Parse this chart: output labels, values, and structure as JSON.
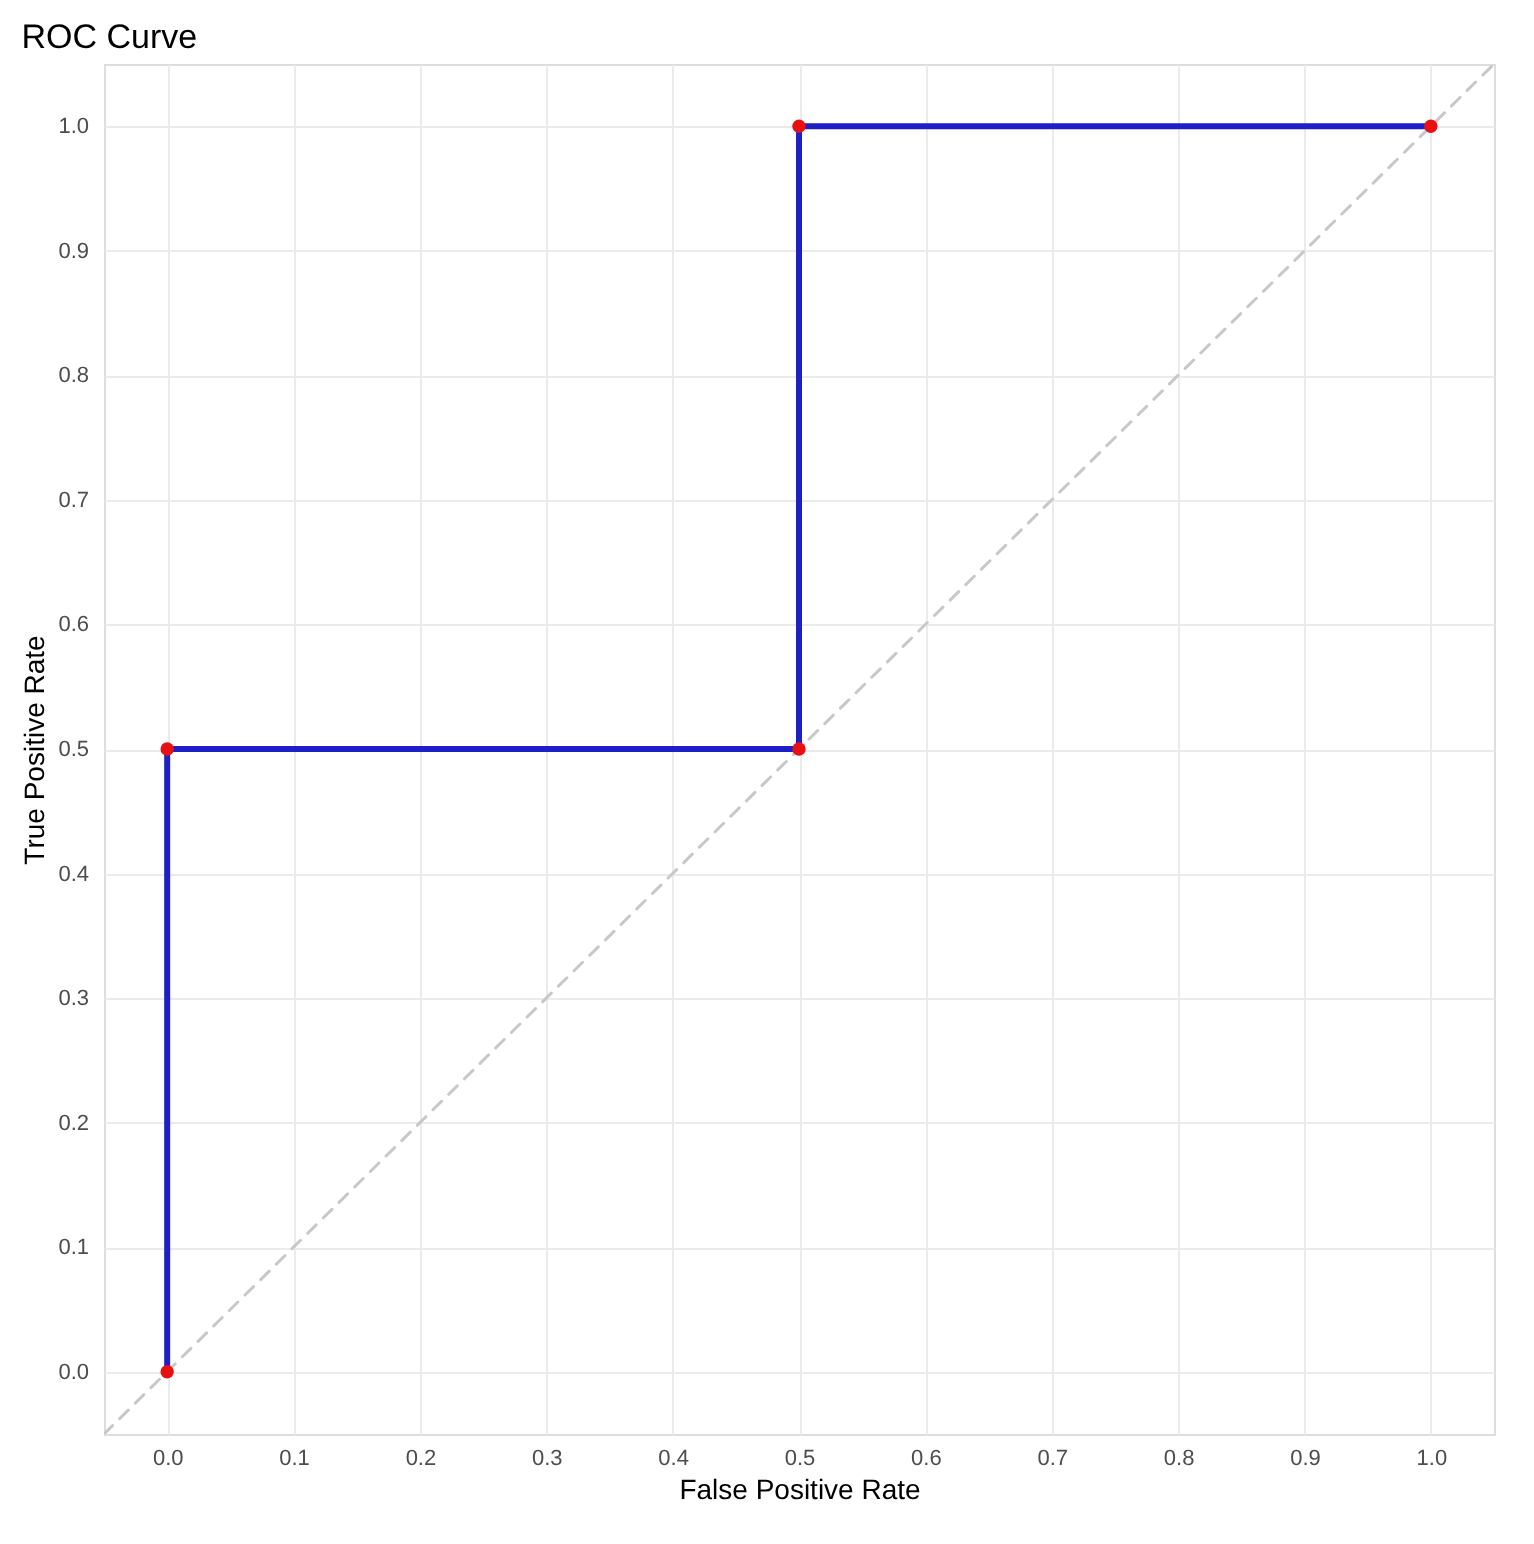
{
  "chart_data": {
    "type": "line",
    "title": "ROC Curve",
    "xlabel": "False Positive Rate",
    "ylabel": "True Positive Rate",
    "xlim": [
      -0.05,
      1.05
    ],
    "ylim": [
      -0.05,
      1.05
    ],
    "xticks": [
      {
        "value": 0,
        "label": "0.0"
      },
      0.1,
      0.2,
      0.3,
      0.4,
      0.5,
      0.6,
      0.7,
      0.8,
      0.9,
      {
        "value": 1,
        "label": "1.0"
      }
    ],
    "yticks": [
      {
        "value": 0,
        "label": "0.0"
      },
      0.1,
      0.2,
      0.3,
      0.4,
      0.5,
      0.6,
      0.7,
      0.8,
      0.9,
      {
        "value": 1,
        "label": "1.0"
      }
    ],
    "grid": true,
    "series": [
      {
        "type": "line",
        "line_style": "dashed",
        "color": "#c8c8c8",
        "x": [
          -0.05,
          1.05
        ],
        "values": [
          -0.05,
          1.05
        ]
      },
      {
        "line_style": "solid",
        "color": "#1f1fc8",
        "x": [
          0,
          0,
          0.5,
          0.5,
          1
        ],
        "values": [
          0,
          0.5,
          0.5,
          1,
          1
        ]
      },
      {
        "type": "scatter",
        "marker": "circle",
        "color": "#e81010",
        "x": [
          0,
          0,
          0.5,
          0.5,
          1
        ],
        "values": [
          0,
          0.5,
          0.5,
          1,
          1
        ]
      }
    ]
  }
}
